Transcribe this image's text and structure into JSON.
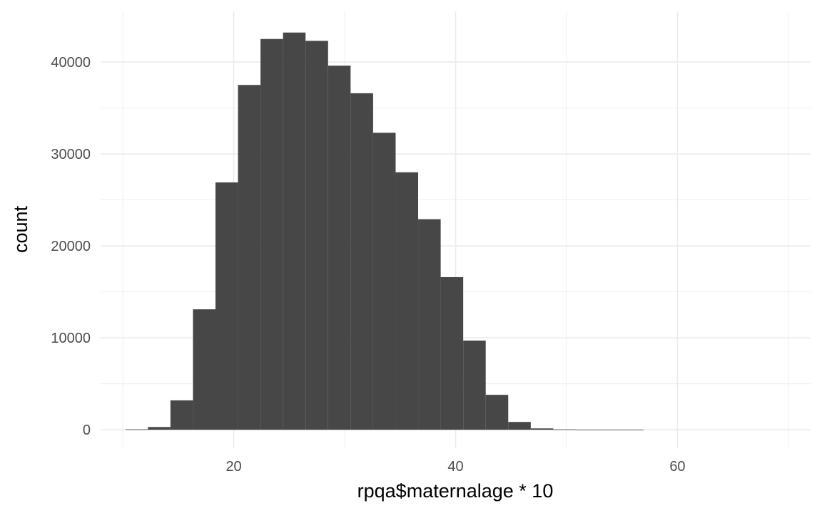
{
  "chart_data": {
    "type": "bar",
    "title": "",
    "xlabel": "rpqa$maternalage * 10",
    "ylabel": "count",
    "grid": true,
    "legend": "none",
    "bar_color": "#474747",
    "grid_color": "#ebebeb",
    "xlim": [
      8,
      72
    ],
    "ylim": [
      -2000,
      45500
    ],
    "x_ticks": [
      20,
      40,
      60
    ],
    "x_tick_labels": [
      "20",
      "40",
      "60"
    ],
    "x_minor_ticks": [
      10,
      30,
      50,
      70
    ],
    "y_ticks": [
      0,
      10000,
      20000,
      30000,
      40000
    ],
    "y_tick_labels": [
      "0",
      "10000",
      "20000",
      "30000",
      "40000"
    ],
    "y_minor_ticks": [
      5000,
      15000,
      25000,
      35000
    ],
    "bin_width": 2.03,
    "x": [
      11.25,
      13.28,
      15.31,
      17.34,
      19.37,
      21.4,
      23.43,
      25.46,
      27.49,
      29.52,
      31.55,
      33.58,
      35.61,
      37.64,
      39.67,
      41.7,
      43.73,
      45.76,
      47.79,
      49.82,
      51.85,
      53.88,
      55.91
    ],
    "values": [
      50,
      300,
      3200,
      13100,
      26900,
      37500,
      42500,
      43200,
      42300,
      39600,
      36600,
      32300,
      28000,
      22900,
      16600,
      9700,
      3800,
      850,
      150,
      40,
      15,
      5,
      3
    ]
  }
}
